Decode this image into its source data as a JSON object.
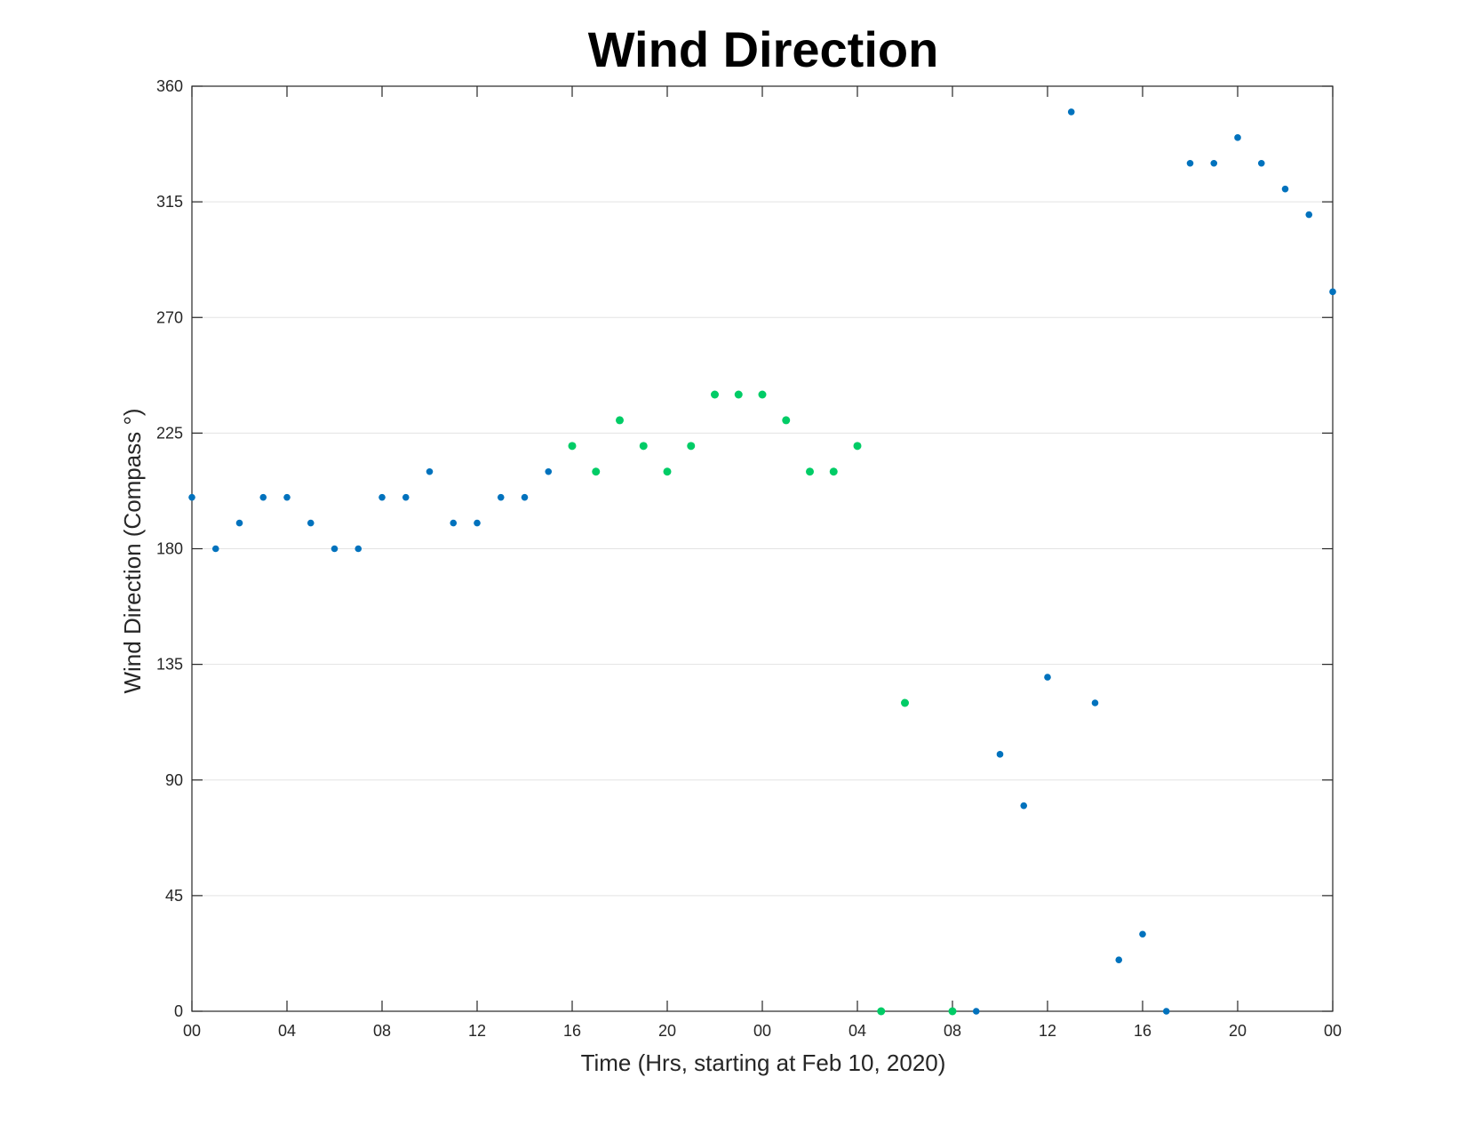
{
  "chart_data": {
    "type": "scatter",
    "title": "Wind Direction",
    "xlabel": "Time (Hrs, starting at Feb 10, 2020)",
    "ylabel": "Wind Direction (Compass °)",
    "x_unit": "hours",
    "xlim": [
      0,
      48
    ],
    "ylim": [
      0,
      360
    ],
    "yticks": [
      0,
      45,
      90,
      135,
      180,
      225,
      270,
      315,
      360
    ],
    "xtick_hours": [
      0,
      4,
      8,
      12,
      16,
      20,
      24,
      28,
      32,
      36,
      40,
      44,
      48
    ],
    "xtick_labels": [
      "00",
      "04",
      "08",
      "12",
      "16",
      "20",
      "00",
      "04",
      "08",
      "12",
      "16",
      "20",
      "00"
    ],
    "grid": true,
    "colors": {
      "blue": "#0072BD",
      "green": "#00CC66"
    },
    "points": [
      {
        "hour": 0,
        "deg": 200,
        "color": "blue"
      },
      {
        "hour": 1,
        "deg": 180,
        "color": "blue"
      },
      {
        "hour": 2,
        "deg": 190,
        "color": "blue"
      },
      {
        "hour": 3,
        "deg": 200,
        "color": "blue"
      },
      {
        "hour": 4,
        "deg": 200,
        "color": "blue"
      },
      {
        "hour": 5,
        "deg": 190,
        "color": "blue"
      },
      {
        "hour": 6,
        "deg": 180,
        "color": "blue"
      },
      {
        "hour": 7,
        "deg": 180,
        "color": "blue"
      },
      {
        "hour": 8,
        "deg": 200,
        "color": "blue"
      },
      {
        "hour": 9,
        "deg": 200,
        "color": "blue"
      },
      {
        "hour": 10,
        "deg": 210,
        "color": "blue"
      },
      {
        "hour": 11,
        "deg": 190,
        "color": "blue"
      },
      {
        "hour": 12,
        "deg": 190,
        "color": "blue"
      },
      {
        "hour": 13,
        "deg": 200,
        "color": "blue"
      },
      {
        "hour": 14,
        "deg": 200,
        "color": "blue"
      },
      {
        "hour": 15,
        "deg": 210,
        "color": "blue"
      },
      {
        "hour": 16,
        "deg": 220,
        "color": "green"
      },
      {
        "hour": 17,
        "deg": 210,
        "color": "green"
      },
      {
        "hour": 18,
        "deg": 230,
        "color": "green"
      },
      {
        "hour": 19,
        "deg": 220,
        "color": "green"
      },
      {
        "hour": 20,
        "deg": 210,
        "color": "green"
      },
      {
        "hour": 21,
        "deg": 220,
        "color": "green"
      },
      {
        "hour": 22,
        "deg": 240,
        "color": "green"
      },
      {
        "hour": 23,
        "deg": 240,
        "color": "green"
      },
      {
        "hour": 24,
        "deg": 240,
        "color": "green"
      },
      {
        "hour": 25,
        "deg": 230,
        "color": "green"
      },
      {
        "hour": 26,
        "deg": 210,
        "color": "green"
      },
      {
        "hour": 27,
        "deg": 210,
        "color": "green"
      },
      {
        "hour": 28,
        "deg": 220,
        "color": "green"
      },
      {
        "hour": 29,
        "deg": 0,
        "color": "green"
      },
      {
        "hour": 30,
        "deg": 120,
        "color": "green"
      },
      {
        "hour": 32,
        "deg": 0,
        "color": "green"
      },
      {
        "hour": 33,
        "deg": 0,
        "color": "blue"
      },
      {
        "hour": 34,
        "deg": 100,
        "color": "blue"
      },
      {
        "hour": 35,
        "deg": 80,
        "color": "blue"
      },
      {
        "hour": 36,
        "deg": 130,
        "color": "blue"
      },
      {
        "hour": 37,
        "deg": 350,
        "color": "blue"
      },
      {
        "hour": 38,
        "deg": 120,
        "color": "blue"
      },
      {
        "hour": 39,
        "deg": 20,
        "color": "blue"
      },
      {
        "hour": 40,
        "deg": 30,
        "color": "blue"
      },
      {
        "hour": 41,
        "deg": 0,
        "color": "blue"
      },
      {
        "hour": 42,
        "deg": 330,
        "color": "blue"
      },
      {
        "hour": 43,
        "deg": 330,
        "color": "blue"
      },
      {
        "hour": 44,
        "deg": 340,
        "color": "blue"
      },
      {
        "hour": 45,
        "deg": 330,
        "color": "blue"
      },
      {
        "hour": 46,
        "deg": 320,
        "color": "blue"
      },
      {
        "hour": 47,
        "deg": 310,
        "color": "blue"
      },
      {
        "hour": 48,
        "deg": 280,
        "color": "blue"
      }
    ]
  }
}
